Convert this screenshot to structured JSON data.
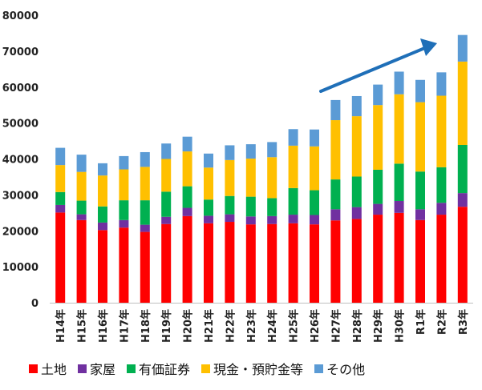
{
  "chart_data": {
    "type": "bar",
    "stacked": true,
    "categories": [
      "H14年",
      "H15年",
      "H16年",
      "H17年",
      "H18年",
      "H19年",
      "H20年",
      "H21年",
      "H22年",
      "H23年",
      "H24年",
      "H25年",
      "H26年",
      "H27年",
      "H28年",
      "H29年",
      "H30年",
      "R1年",
      "R2年",
      "R3年"
    ],
    "ylim": [
      0,
      80000
    ],
    "yticks": [
      0,
      10000,
      20000,
      30000,
      40000,
      50000,
      60000,
      70000,
      80000
    ],
    "legend_position": "bottom",
    "grid": false,
    "annotation": "upward-trend-arrow",
    "series": [
      {
        "name": "土地",
        "color": "#ff0000",
        "values": [
          25100,
          23000,
          20200,
          20900,
          19700,
          21900,
          24100,
          22100,
          22500,
          21800,
          21900,
          22100,
          21800,
          22900,
          23300,
          24500,
          25000,
          23000,
          24500,
          26700
        ]
      },
      {
        "name": "家屋",
        "color": "#7030a0",
        "values": [
          2100,
          1600,
          2100,
          2100,
          2000,
          2000,
          2300,
          2100,
          2100,
          2200,
          2200,
          2400,
          2600,
          3100,
          3300,
          3000,
          3300,
          3000,
          3300,
          3800
        ]
      },
      {
        "name": "有価証券",
        "color": "#00b050",
        "values": [
          3600,
          3800,
          4500,
          5500,
          6800,
          7000,
          6000,
          4500,
          5100,
          5500,
          5000,
          7400,
          6900,
          8300,
          8500,
          9500,
          10400,
          10500,
          9900,
          13400
        ]
      },
      {
        "name": "現金・預貯金等",
        "color": "#ffc000",
        "values": [
          7500,
          8000,
          8600,
          8600,
          9300,
          9100,
          9700,
          8900,
          10000,
          10600,
          11400,
          11800,
          12200,
          16500,
          16800,
          18000,
          19300,
          19300,
          19900,
          23200
        ]
      },
      {
        "name": "その他",
        "color": "#5b9bd5",
        "values": [
          4800,
          4800,
          3400,
          3700,
          4100,
          4300,
          4100,
          3900,
          4100,
          4000,
          4200,
          4600,
          4700,
          5600,
          5600,
          5700,
          6300,
          6200,
          6500,
          7400
        ]
      }
    ]
  },
  "colors": {
    "arrow": "#1f6fb8",
    "axis": "#bfbfbf"
  }
}
